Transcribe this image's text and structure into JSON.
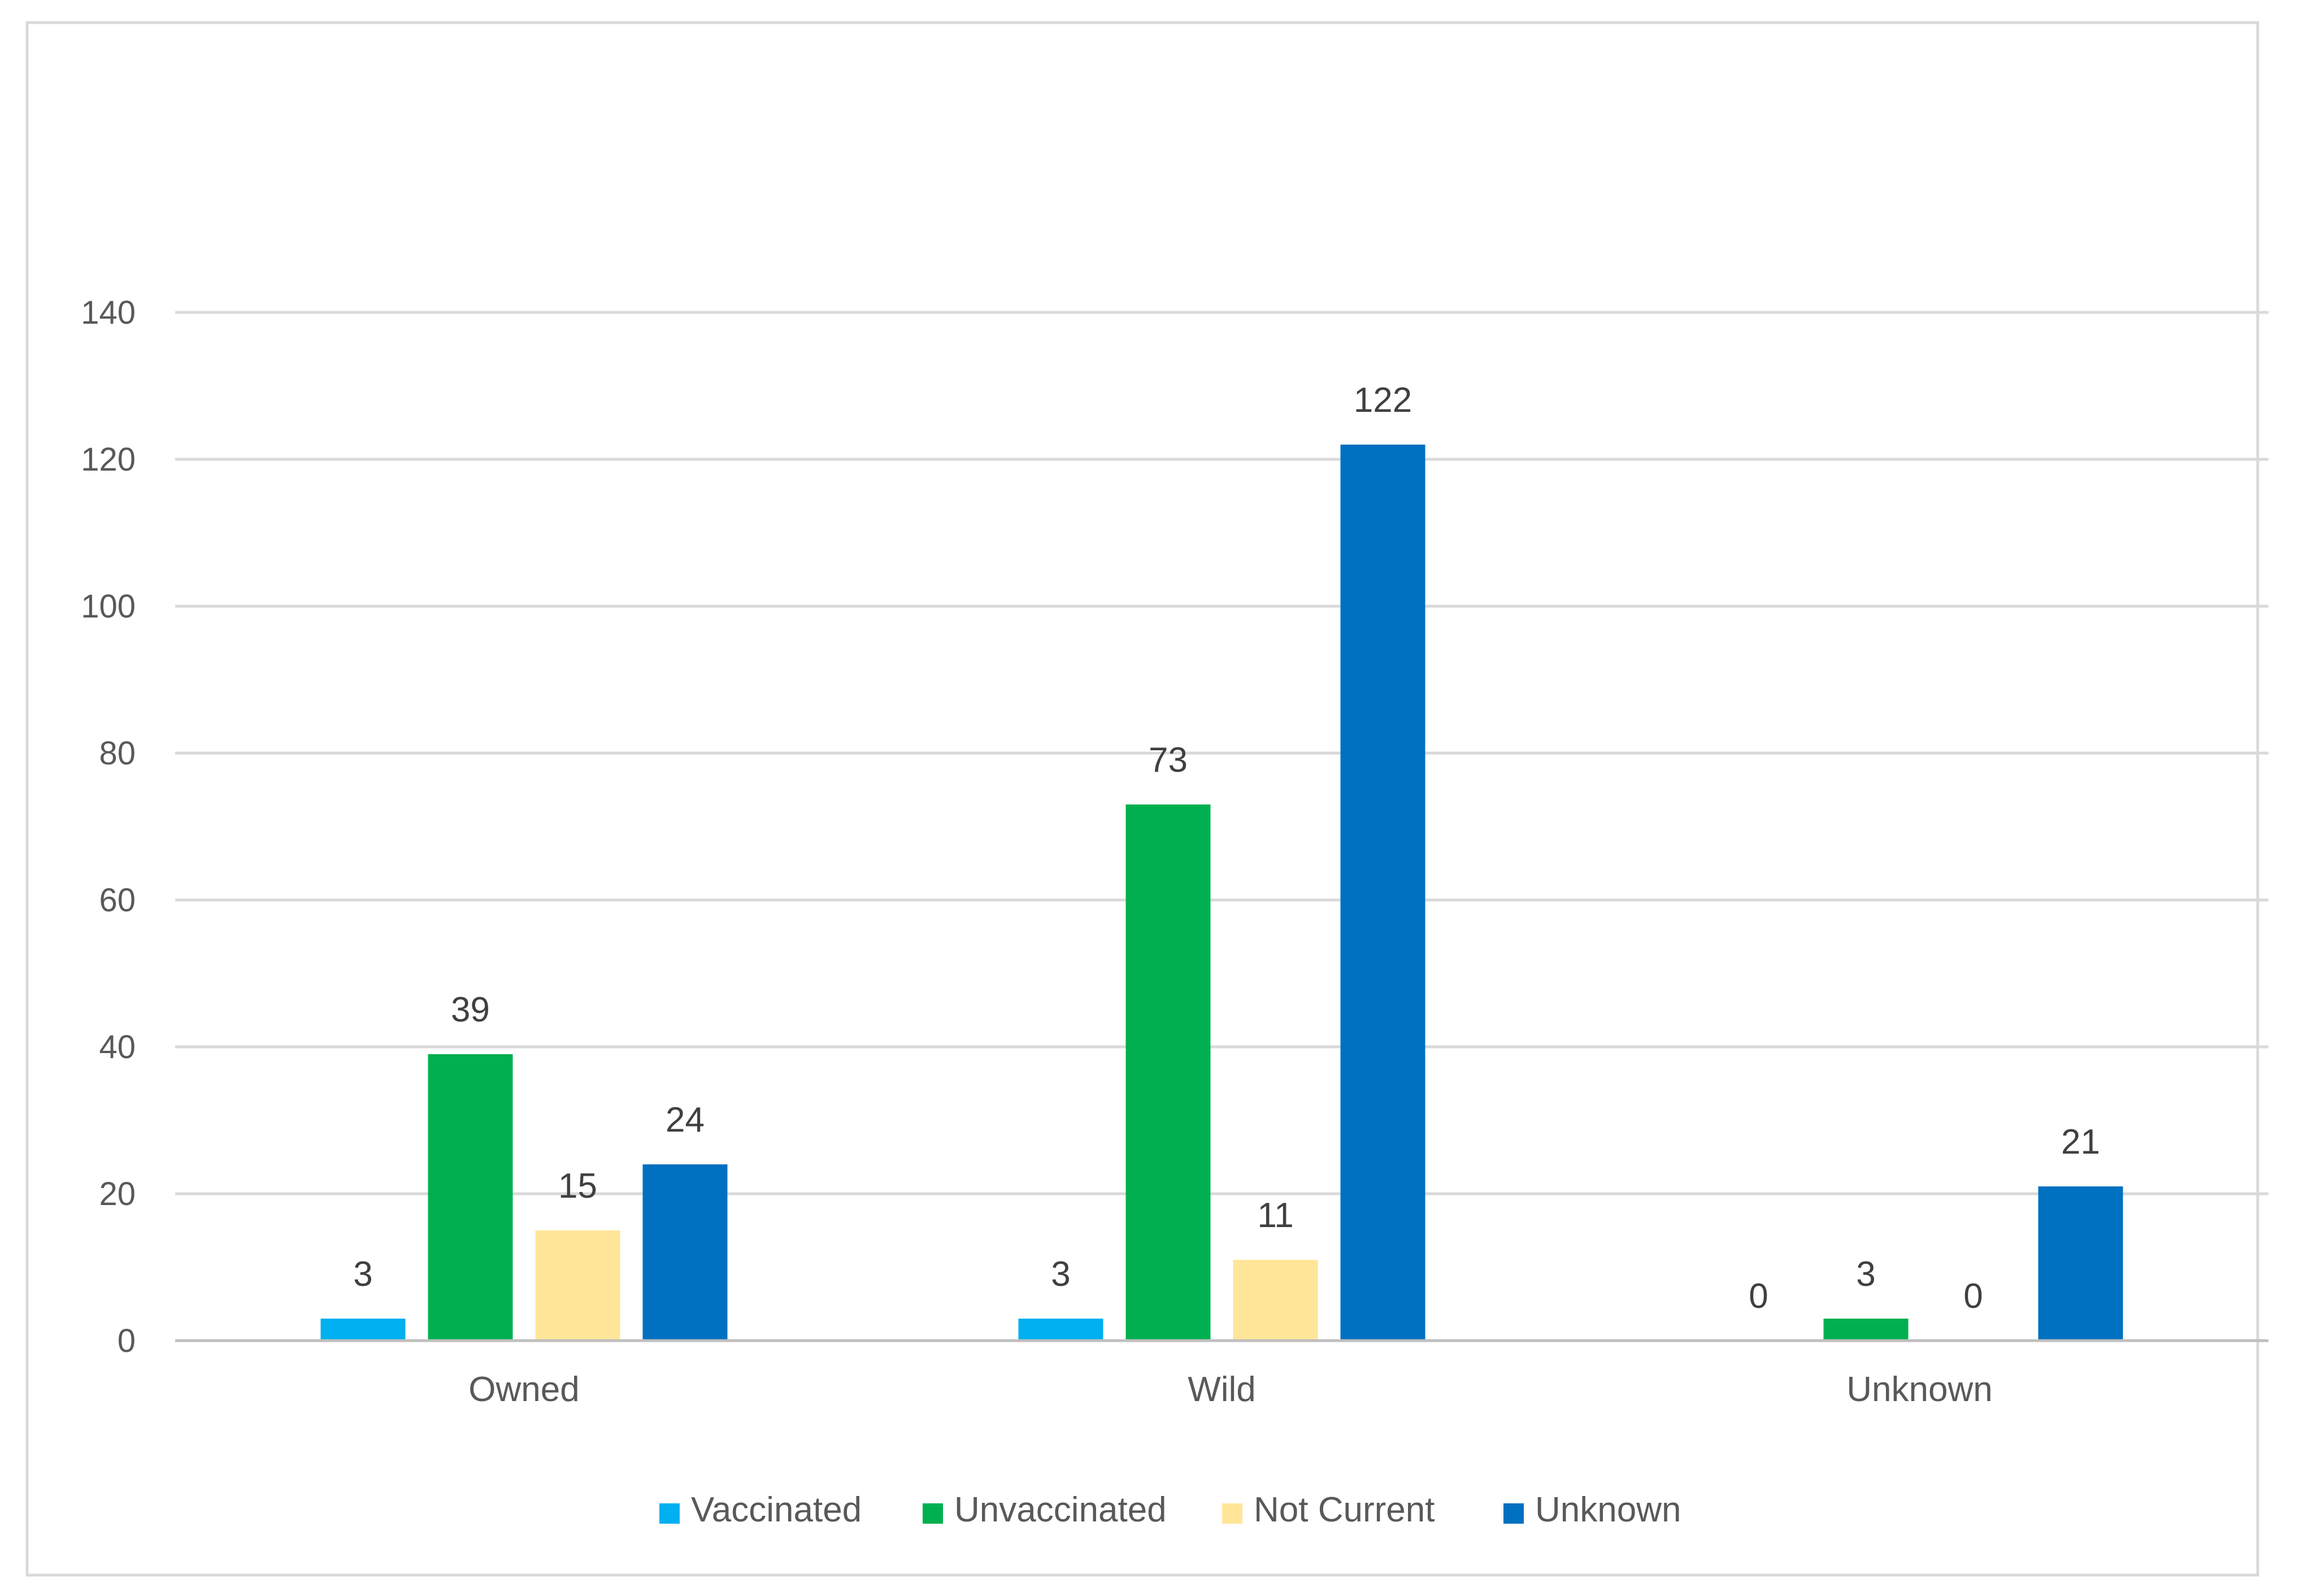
{
  "chart_data": {
    "type": "bar",
    "title": "",
    "xlabel": "",
    "ylabel": "",
    "categories": [
      "Owned",
      "Wild",
      "Unknown"
    ],
    "series": [
      {
        "name": "Vaccinated",
        "color": "#00B0F0",
        "values": [
          3,
          3,
          0
        ]
      },
      {
        "name": "Unvaccinated",
        "color": "#00B050",
        "values": [
          39,
          73,
          3
        ]
      },
      {
        "name": "Not Current",
        "color": "#FFE699",
        "values": [
          15,
          11,
          0
        ]
      },
      {
        "name": "Unknown",
        "color": "#0070C0",
        "values": [
          24,
          122,
          21
        ]
      }
    ],
    "ylim": [
      0,
      140
    ],
    "yticks": [
      0,
      20,
      40,
      60,
      80,
      100,
      120,
      140
    ],
    "grid": true,
    "data_labels": true,
    "legend_position": "bottom"
  },
  "colors": {
    "gridline": "#D9D9D9",
    "axis": "#BFBFBF",
    "frame": "#D9D9D9",
    "text": "#595959",
    "data_label_text": "#404040"
  }
}
